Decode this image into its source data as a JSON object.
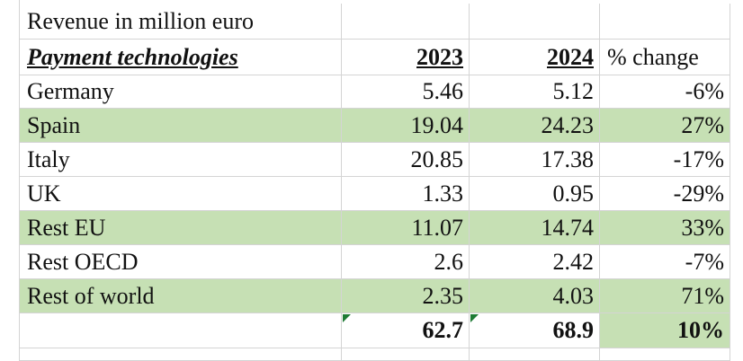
{
  "sheet": {
    "title": "Revenue in million euro",
    "header": [
      "Payment technologies",
      "2023",
      "2024",
      "% change"
    ],
    "rows": [
      [
        "Germany",
        "5.46",
        "5.12",
        "-6%"
      ],
      [
        "Spain",
        "19.04",
        "24.23",
        "27%"
      ],
      [
        "Italy",
        "20.85",
        "17.38",
        "-17%"
      ],
      [
        "UK",
        "1.33",
        "0.95",
        "-29%"
      ],
      [
        "Rest EU",
        "11.07",
        "14.74",
        "33%"
      ],
      [
        "Rest OECD",
        "2.6",
        "2.42",
        "-7%"
      ],
      [
        "Rest of world",
        "2.35",
        "4.03",
        "71%"
      ]
    ],
    "total": [
      "62.7",
      "68.9",
      "10%"
    ]
  }
}
